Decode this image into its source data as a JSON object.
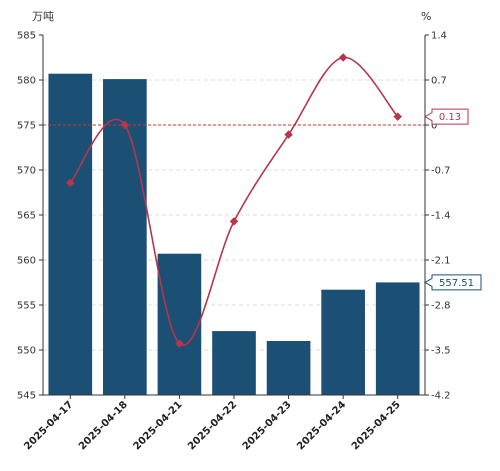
{
  "chart_data": {
    "type": "bar",
    "title": "",
    "left_axis": {
      "unit": "万吨",
      "ylim": [
        545,
        585
      ],
      "ticks": [
        "585",
        "580",
        "575",
        "570",
        "565",
        "560",
        "555",
        "550",
        "545"
      ]
    },
    "right_axis": {
      "unit": "%",
      "ylim": [
        -4.2,
        1.4
      ],
      "ticks": [
        "1.4",
        "0.7",
        "0",
        "-0.7",
        "-1.4",
        "-2.1",
        "-2.8",
        "-3.5",
        "-4.2"
      ]
    },
    "categories": [
      "2025-04-17",
      "2025-04-18",
      "2025-04-21",
      "2025-04-22",
      "2025-04-23",
      "2025-04-24",
      "2025-04-25"
    ],
    "series": [
      {
        "type": "bar",
        "axis": "left",
        "values": [
          580.7,
          580.1,
          560.7,
          552.1,
          551.0,
          556.7,
          557.51
        ]
      },
      {
        "type": "line",
        "axis": "right",
        "values": [
          -0.9,
          0.0,
          -3.4,
          -1.5,
          -0.15,
          1.05,
          0.13
        ]
      }
    ],
    "reference_line": {
      "axis": "right",
      "value": 0
    },
    "callouts": [
      {
        "series": 1,
        "label": "0.13"
      },
      {
        "series": 0,
        "label": "557.51"
      }
    ],
    "grid": true,
    "colors": {
      "bar": "#1c4f74",
      "line": "#b5364d",
      "reference": "#c0392b",
      "grid": "#dddddd",
      "axis": "#333333"
    }
  }
}
